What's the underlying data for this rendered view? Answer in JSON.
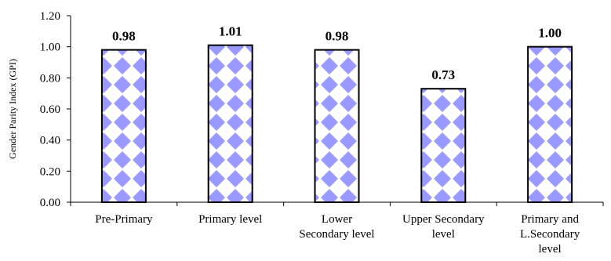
{
  "chart_data": {
    "type": "bar",
    "title": "",
    "xlabel": "",
    "ylabel": "Gender Parity Index (GPI)",
    "ylim": [
      0,
      1.2
    ],
    "yticks": [
      "0.00",
      "0.20",
      "0.40",
      "0.60",
      "0.80",
      "1.00",
      "1.20"
    ],
    "grid": false,
    "categories": [
      [
        "Pre-Primary"
      ],
      [
        "Primary level"
      ],
      [
        "Lower",
        "Secondary level"
      ],
      [
        "Upper Secondary",
        "level"
      ],
      [
        "Primary and",
        "L.Secondary",
        "level"
      ]
    ],
    "values": [
      0.98,
      1.01,
      0.98,
      0.73,
      1.0
    ],
    "data_labels": [
      "0.98",
      "1.01",
      "0.98",
      "0.73",
      "1.00"
    ],
    "bar_fill": "checkered diamond pattern",
    "colors": {
      "pattern": "#9999ff",
      "background": "#ffffff",
      "outline": "#000000"
    }
  }
}
